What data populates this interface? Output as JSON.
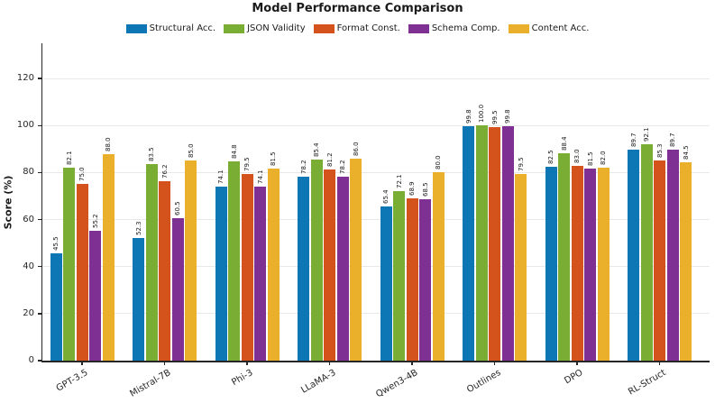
{
  "chart_data": {
    "type": "bar",
    "title": "Model Performance Comparison",
    "ylabel": "Score (%)",
    "xlabel": "",
    "categories": [
      "GPT-3.5",
      "Mistral-7B",
      "Phi-3",
      "LLaMA-3",
      "Qwen3-4B",
      "Outlines",
      "DPO",
      "RL-Struct"
    ],
    "series": [
      {
        "name": "Structural Acc.",
        "color": "#0d76b5",
        "values": [
          45.5,
          52.3,
          74.1,
          78.2,
          65.4,
          99.8,
          82.5,
          89.7
        ]
      },
      {
        "name": "JSON Validity",
        "color": "#7aad33",
        "values": [
          82.1,
          83.5,
          84.8,
          85.4,
          72.1,
          100.0,
          88.4,
          92.1
        ]
      },
      {
        "name": "Format Const.",
        "color": "#d4531d",
        "values": [
          75.0,
          76.2,
          79.5,
          81.2,
          68.9,
          99.5,
          83.0,
          85.3
        ]
      },
      {
        "name": "Schema Comp.",
        "color": "#7e3192",
        "values": [
          55.2,
          60.5,
          74.1,
          78.2,
          68.5,
          99.8,
          81.5,
          89.7
        ]
      },
      {
        "name": "Content Acc.",
        "color": "#eab02c",
        "values": [
          88.0,
          85.0,
          81.5,
          86.0,
          80.0,
          79.5,
          82.0,
          84.5
        ]
      }
    ],
    "ylim": [
      0,
      135
    ],
    "yticks": [
      0,
      20,
      40,
      60,
      80,
      100,
      120
    ],
    "grid": true,
    "legend_position": "top",
    "value_labels": "one-decimal-rotated-90",
    "colors": {
      "grid": "#e8e8e8",
      "axis": "#262626",
      "text": "#1a1a1a"
    }
  }
}
